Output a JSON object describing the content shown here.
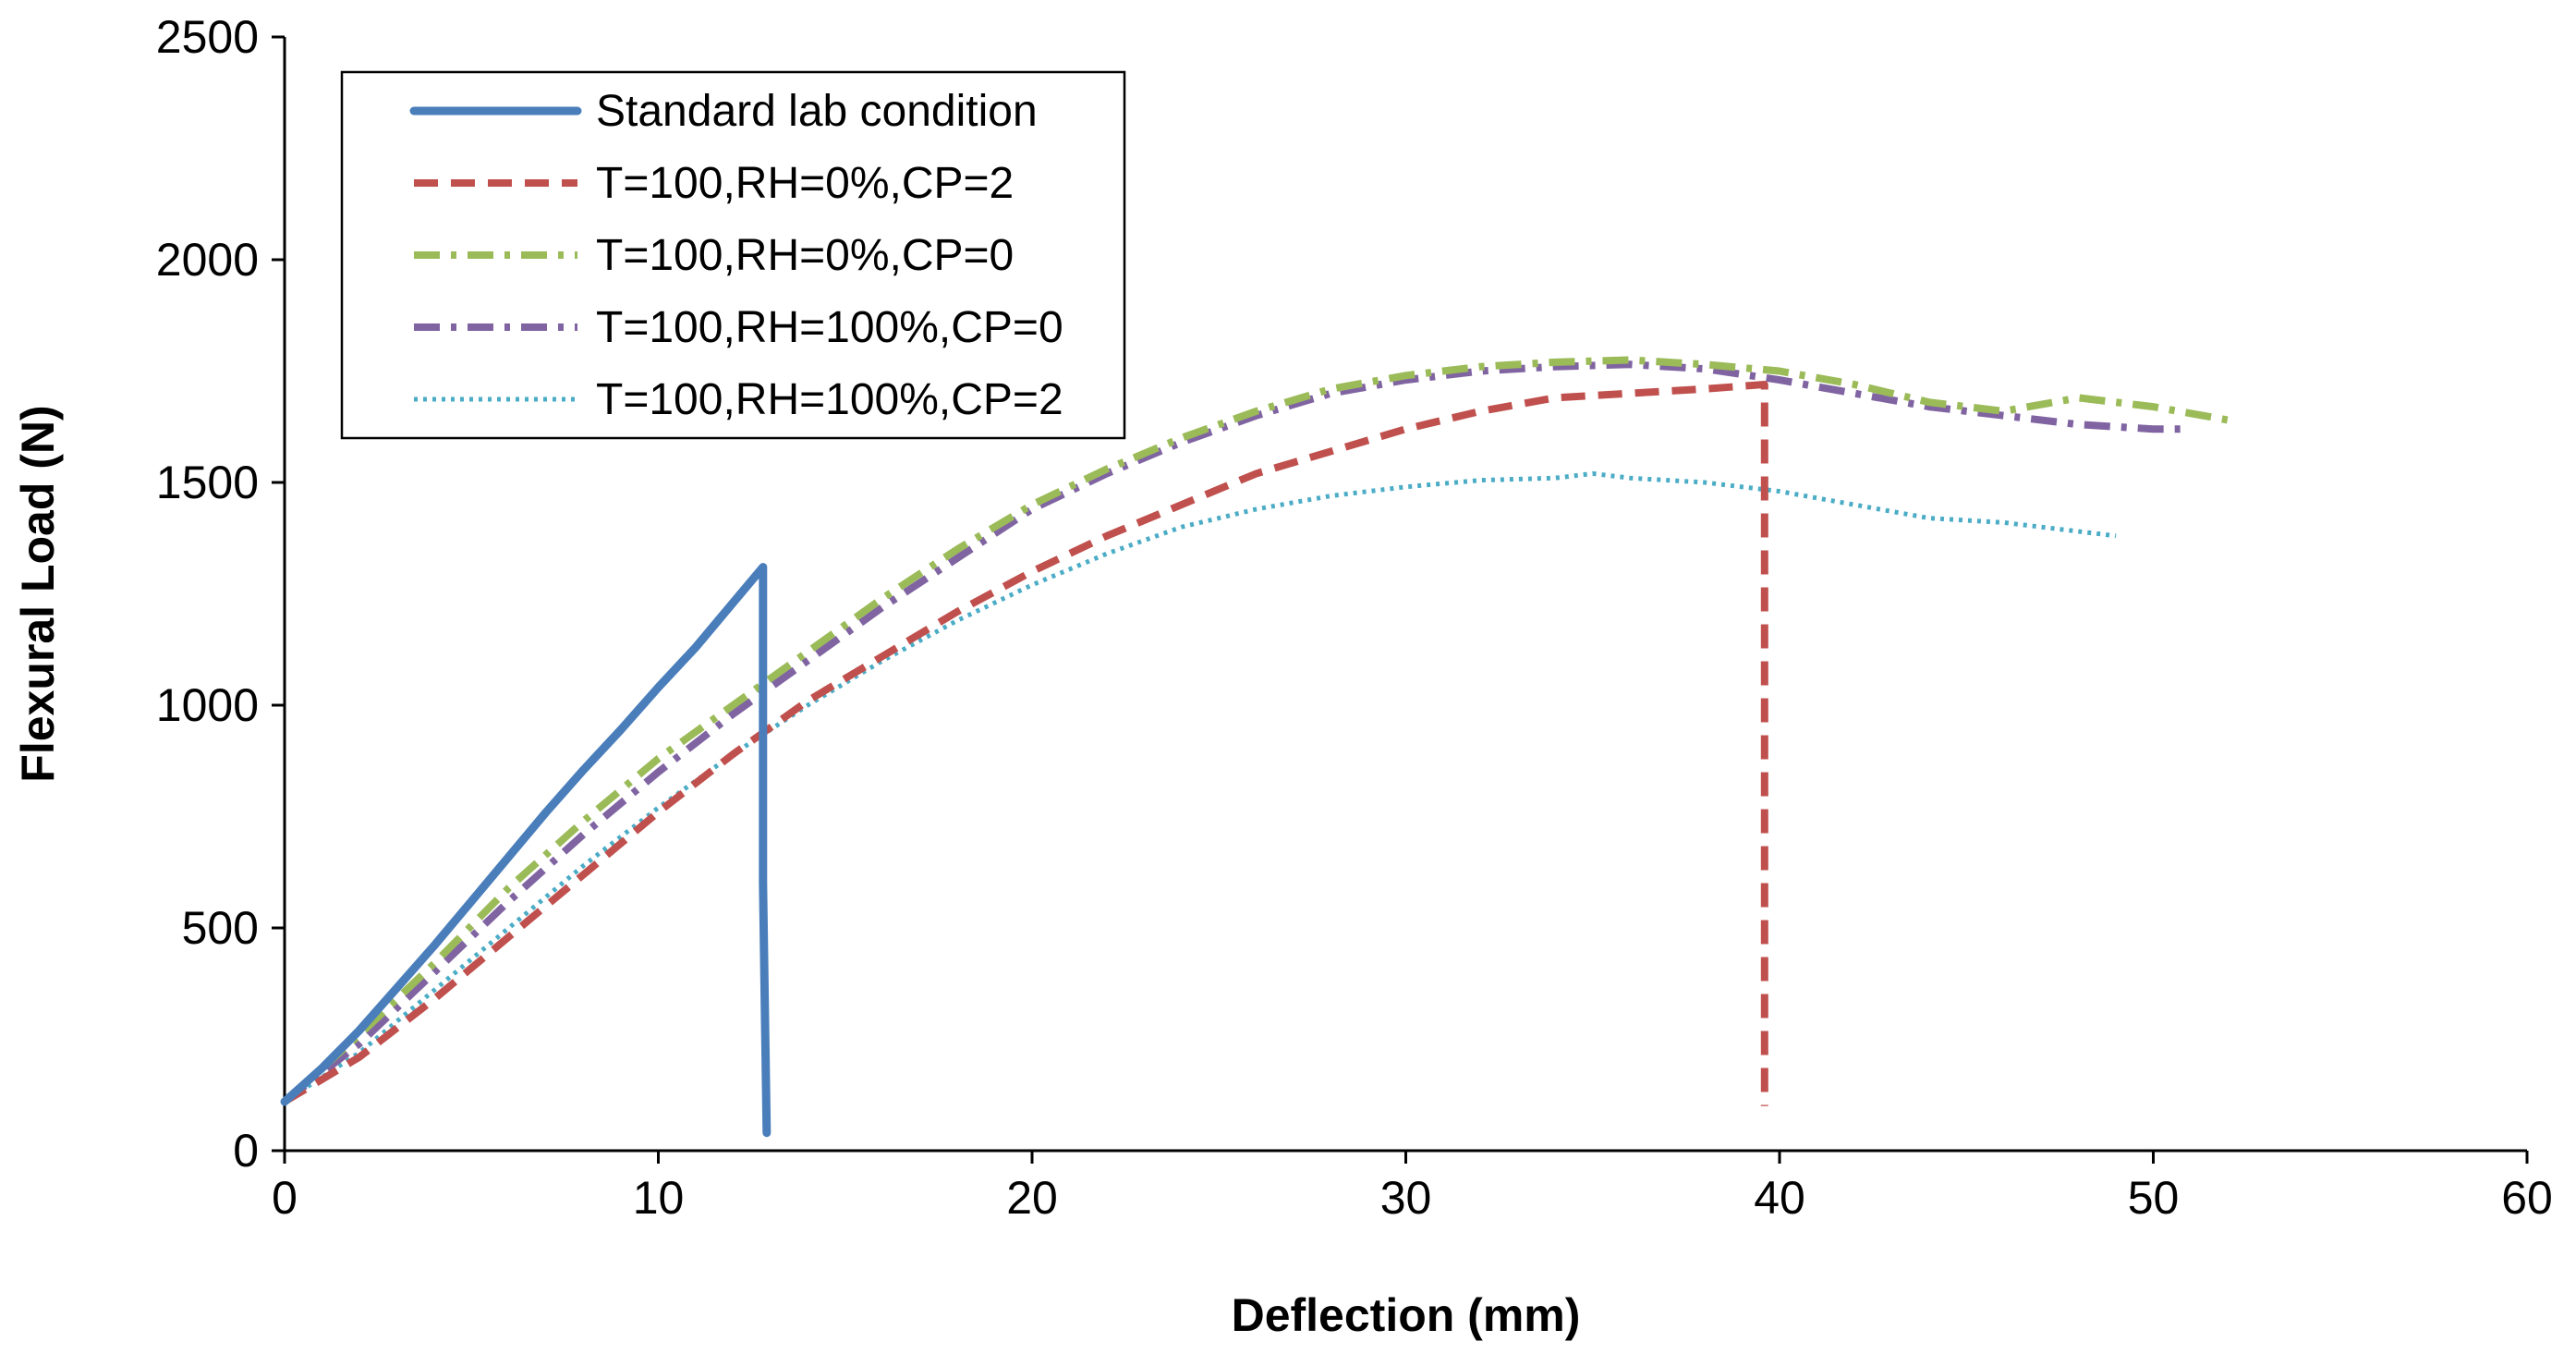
{
  "chart_data": {
    "type": "line",
    "title": "",
    "xlabel": "Deflection (mm)",
    "ylabel": "Flexural Load (N)",
    "xlim": [
      0,
      60
    ],
    "ylim": [
      0,
      2500
    ],
    "xticks": [
      0,
      10,
      20,
      30,
      40,
      50,
      60
    ],
    "yticks": [
      0,
      500,
      1000,
      1500,
      2000,
      2500
    ],
    "grid": false,
    "legend_position": "top-left",
    "series": [
      {
        "name": "Standard lab condition",
        "color": "#4a7ebb",
        "style": "solid",
        "x": [
          0,
          1,
          2,
          3,
          4,
          5,
          6,
          7,
          8,
          9,
          10,
          11,
          12,
          12.8,
          12.8,
          12.9
        ],
        "y": [
          110,
          185,
          270,
          365,
          460,
          560,
          660,
          760,
          855,
          945,
          1040,
          1130,
          1230,
          1310,
          600,
          40
        ]
      },
      {
        "name": "T=100,RH=0%,CP=2",
        "color": "#c0504d",
        "style": "dashed",
        "x": [
          0,
          2,
          4,
          6,
          8,
          10,
          12,
          13,
          14,
          16,
          18,
          20,
          22,
          24,
          26,
          28,
          30,
          32,
          34,
          36,
          38,
          39.6,
          39.6,
          39.6
        ],
        "y": [
          110,
          210,
          340,
          480,
          620,
          760,
          890,
          950,
          1010,
          1110,
          1210,
          1300,
          1380,
          1450,
          1520,
          1570,
          1620,
          1660,
          1690,
          1700,
          1710,
          1720,
          800,
          100
        ]
      },
      {
        "name": "T=100,RH=0%,CP=0",
        "color": "#9bbb59",
        "style": "dashdot",
        "x": [
          0,
          2,
          4,
          6,
          8,
          10,
          12,
          14,
          16,
          18,
          20,
          22,
          24,
          26,
          28,
          30,
          32,
          34,
          36,
          38,
          40,
          42,
          44,
          46,
          48,
          50,
          52
        ],
        "y": [
          110,
          260,
          420,
          590,
          740,
          880,
          1000,
          1120,
          1240,
          1350,
          1450,
          1530,
          1600,
          1660,
          1710,
          1740,
          1760,
          1770,
          1775,
          1765,
          1750,
          1720,
          1680,
          1660,
          1690,
          1670,
          1640
        ]
      },
      {
        "name": "T=100,RH=100%,CP=0",
        "color": "#8064a2",
        "style": "dashdot",
        "x": [
          0,
          2,
          4,
          6,
          8,
          10,
          12,
          14,
          16,
          18,
          20,
          22,
          24,
          26,
          28,
          30,
          32,
          34,
          36,
          38,
          40,
          42,
          44,
          46,
          48,
          50,
          51
        ],
        "y": [
          110,
          240,
          400,
          560,
          710,
          850,
          980,
          1100,
          1220,
          1330,
          1440,
          1520,
          1590,
          1650,
          1700,
          1730,
          1750,
          1760,
          1765,
          1755,
          1730,
          1700,
          1670,
          1650,
          1630,
          1620,
          1620
        ]
      },
      {
        "name": "T=100,RH=100%,CP=2",
        "color": "#4bacc6",
        "style": "dotted",
        "x": [
          0,
          2,
          4,
          6,
          8,
          10,
          12,
          14,
          16,
          18,
          20,
          22,
          24,
          26,
          28,
          30,
          32,
          34,
          35,
          36,
          38,
          40,
          42,
          44,
          46,
          48,
          49
        ],
        "y": [
          110,
          220,
          360,
          500,
          640,
          770,
          890,
          1000,
          1100,
          1190,
          1270,
          1340,
          1400,
          1440,
          1470,
          1490,
          1505,
          1510,
          1520,
          1510,
          1500,
          1480,
          1450,
          1420,
          1410,
          1390,
          1380
        ]
      }
    ]
  }
}
